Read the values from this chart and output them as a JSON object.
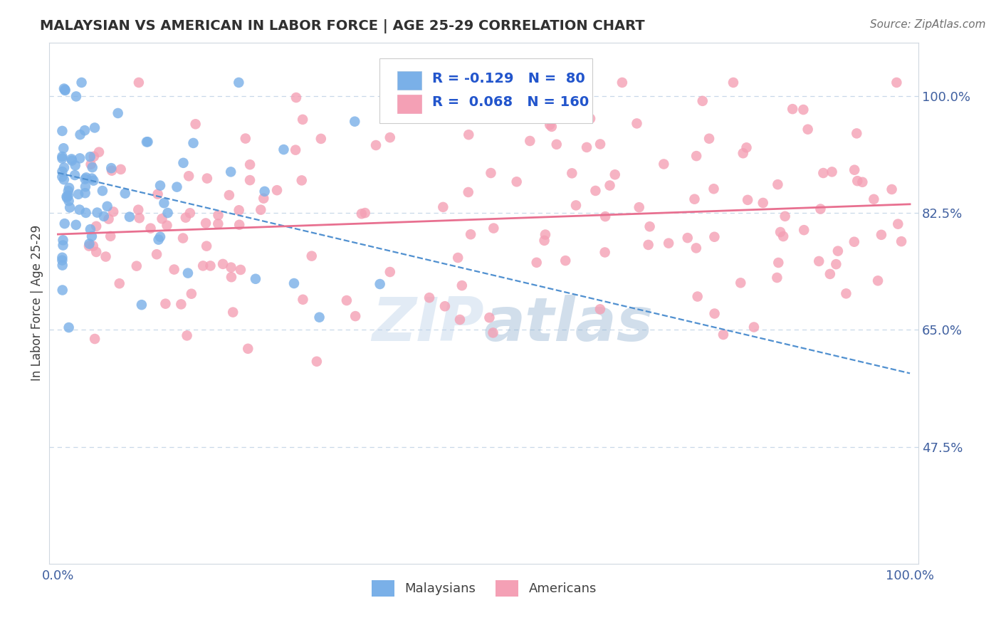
{
  "title": "MALAYSIAN VS AMERICAN IN LABOR FORCE | AGE 25-29 CORRELATION CHART",
  "source_text": "Source: ZipAtlas.com",
  "ylabel": "In Labor Force | Age 25-29",
  "xticklabels": [
    "0.0%",
    "100.0%"
  ],
  "yticklabels_right": [
    "47.5%",
    "65.0%",
    "82.5%",
    "100.0%"
  ],
  "yticks_right": [
    0.475,
    0.65,
    0.825,
    1.0
  ],
  "ylim": [
    0.3,
    1.08
  ],
  "xlim": [
    -0.01,
    1.01
  ],
  "legend_r_blue": "-0.129",
  "legend_n_blue": "80",
  "legend_r_pink": "0.068",
  "legend_n_pink": "160",
  "blue_color": "#7ab0e8",
  "pink_color": "#f4a0b5",
  "trend_blue_color": "#5090d0",
  "trend_pink_color": "#e87090",
  "watermark_zip": "ZIP",
  "watermark_atlas": "atlas",
  "background_color": "#ffffff",
  "grid_color": "#c8d8e8",
  "spine_color": "#d0d8e0",
  "tick_color": "#4060a0",
  "title_color": "#303030",
  "ylabel_color": "#404040",
  "legend_text_color": "#2255cc",
  "bottom_legend_color": "#404040"
}
